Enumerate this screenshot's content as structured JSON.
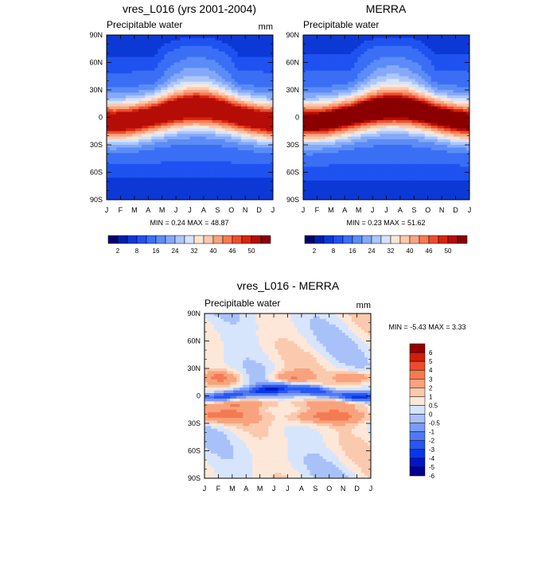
{
  "months": [
    "J",
    "F",
    "M",
    "A",
    "M",
    "J",
    "J",
    "A",
    "S",
    "O",
    "N",
    "D",
    "J"
  ],
  "lats": [
    "90N",
    "60N",
    "30N",
    "0",
    "30S",
    "60S",
    "90S"
  ],
  "palette": {
    "seq": [
      "#04006b",
      "#001fae",
      "#0c39d6",
      "#1f52f0",
      "#3a6ef5",
      "#5b8cf7",
      "#84a9f9",
      "#adc6fb",
      "#d5e4fd",
      "#fde6d6",
      "#fbc9ad",
      "#f9a47f",
      "#f57a52",
      "#ee4d2c",
      "#d92410",
      "#b50d07",
      "#8a0000"
    ],
    "div": [
      "#00028f",
      "#0016c9",
      "#0a36e8",
      "#2756f3",
      "#4f78f4",
      "#7b9bf6",
      "#a9c1f9",
      "#d7e5fc",
      "#fde7d8",
      "#fbc9ad",
      "#f8a37d",
      "#f47a52",
      "#ec4c2b",
      "#d21d0c",
      "#950000"
    ]
  },
  "chart_data": [
    {
      "type": "heatmap",
      "title": "vres_L016 (yrs 2001-2004)",
      "subtitle": "Precipitable water",
      "units": "mm",
      "min": 0.24,
      "max": 48.87,
      "minmax_label": "MIN =   0.24 MAX =  48.87",
      "x": [
        "J",
        "F",
        "M",
        "A",
        "M",
        "J",
        "J",
        "A",
        "S",
        "O",
        "N",
        "D",
        "J"
      ],
      "y": [
        "90N",
        "60N",
        "30N",
        "0",
        "30S",
        "60S",
        "90S"
      ],
      "colorbar_labels": [
        "2",
        "8",
        "16",
        "24",
        "32",
        "40",
        "46",
        "50"
      ]
    },
    {
      "type": "heatmap",
      "title": "MERRA",
      "subtitle": "Precipitable water",
      "units": "",
      "min": 0.23,
      "max": 51.62,
      "minmax_label": "MIN =   0.23 MAX =  51.62",
      "x": [
        "J",
        "F",
        "M",
        "A",
        "M",
        "J",
        "J",
        "A",
        "S",
        "O",
        "N",
        "D",
        "J"
      ],
      "y": [
        "90N",
        "60N",
        "30N",
        "0",
        "30S",
        "60S",
        "90S"
      ],
      "colorbar_labels": [
        "2",
        "8",
        "16",
        "24",
        "32",
        "40",
        "46",
        "50"
      ]
    },
    {
      "type": "heatmap",
      "title": "vres_L016 - MERRA",
      "subtitle": "Precipitable water",
      "units": "mm",
      "min": -5.43,
      "max": 3.33,
      "minmax_label": "MIN =  -5.43 MAX =   3.33",
      "x": [
        "J",
        "F",
        "M",
        "A",
        "M",
        "J",
        "J",
        "A",
        "S",
        "O",
        "N",
        "D",
        "J"
      ],
      "y": [
        "90N",
        "60N",
        "30N",
        "0",
        "30S",
        "60S",
        "90S"
      ],
      "colorbar_labels": [
        "6",
        "5",
        "4",
        "3",
        "2",
        "1",
        "0.5",
        "0",
        "-0.5",
        "-1",
        "-2",
        "-3",
        "-4",
        "-5",
        "-6"
      ]
    }
  ]
}
